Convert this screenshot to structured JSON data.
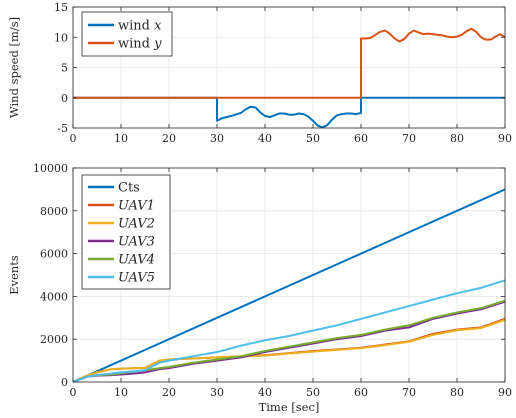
{
  "chart_data": [
    {
      "type": "line",
      "xlabel": "",
      "ylabel": "Wind speed [m/s]",
      "xlim": [
        0,
        90
      ],
      "ylim": [
        -5,
        15
      ],
      "xticks": [
        "0",
        "10",
        "20",
        "30",
        "40",
        "50",
        "60",
        "70",
        "80",
        "90"
      ],
      "yticks": [
        "-5",
        "0",
        "5",
        "10",
        "15"
      ],
      "grid": true,
      "legend_position": "top-left",
      "series": [
        {
          "name": "wind x",
          "name_plain": "wind ",
          "name_italic": "x",
          "color": "#0072BD",
          "points": [
            [
              0,
              0
            ],
            [
              30,
              0
            ],
            [
              30,
              -3.8
            ],
            [
              31,
              -3.4
            ],
            [
              33,
              -3.0
            ],
            [
              35,
              -2.5
            ],
            [
              36,
              -1.9
            ],
            [
              37,
              -1.5
            ],
            [
              38,
              -1.6
            ],
            [
              39,
              -2.4
            ],
            [
              40,
              -3.0
            ],
            [
              41,
              -3.2
            ],
            [
              42,
              -2.9
            ],
            [
              43,
              -2.6
            ],
            [
              44,
              -2.6
            ],
            [
              45,
              -2.8
            ],
            [
              46,
              -2.8
            ],
            [
              47,
              -2.6
            ],
            [
              48,
              -2.7
            ],
            [
              49,
              -3.1
            ],
            [
              50,
              -3.8
            ],
            [
              51,
              -4.6
            ],
            [
              52,
              -4.9
            ],
            [
              53,
              -4.5
            ],
            [
              54,
              -3.6
            ],
            [
              55,
              -2.9
            ],
            [
              56,
              -2.7
            ],
            [
              57,
              -2.6
            ],
            [
              58,
              -2.6
            ],
            [
              59,
              -2.7
            ],
            [
              60,
              -2.5
            ],
            [
              60,
              0
            ],
            [
              90,
              0
            ]
          ]
        },
        {
          "name": "wind y",
          "name_plain": "wind ",
          "name_italic": "y",
          "color": "#D95319",
          "points": [
            [
              0,
              0
            ],
            [
              60,
              0
            ],
            [
              60,
              9.8
            ],
            [
              61,
              9.8
            ],
            [
              62,
              9.9
            ],
            [
              63,
              10.4
            ],
            [
              64,
              10.9
            ],
            [
              65,
              11.1
            ],
            [
              66,
              10.6
            ],
            [
              67,
              9.8
            ],
            [
              68,
              9.3
            ],
            [
              69,
              9.7
            ],
            [
              70,
              10.6
            ],
            [
              71,
              11.1
            ],
            [
              72,
              10.8
            ],
            [
              73,
              10.5
            ],
            [
              74,
              10.6
            ],
            [
              75,
              10.5
            ],
            [
              76,
              10.4
            ],
            [
              77,
              10.3
            ],
            [
              78,
              10.1
            ],
            [
              79,
              10.0
            ],
            [
              80,
              10.1
            ],
            [
              81,
              10.4
            ],
            [
              82,
              11.0
            ],
            [
              83,
              11.4
            ],
            [
              84,
              10.9
            ],
            [
              85,
              10.0
            ],
            [
              86,
              9.6
            ],
            [
              87,
              9.6
            ],
            [
              88,
              10.1
            ],
            [
              89,
              10.5
            ],
            [
              90,
              10.0
            ]
          ]
        }
      ]
    },
    {
      "type": "line",
      "xlabel": "Time [sec]",
      "ylabel": "Events",
      "xlim": [
        0,
        90
      ],
      "ylim": [
        0,
        10000
      ],
      "xticks": [
        "0",
        "10",
        "20",
        "30",
        "40",
        "50",
        "60",
        "70",
        "80",
        "90"
      ],
      "yticks": [
        "0",
        "2000",
        "4000",
        "6000",
        "8000",
        "10000"
      ],
      "grid": true,
      "legend_position": "top-left",
      "series": [
        {
          "name": "Cts",
          "italic": false,
          "color": "#0072BD",
          "points": [
            [
              0,
              0
            ],
            [
              90,
              9000
            ]
          ]
        },
        {
          "name": "UAV1",
          "italic": true,
          "color": "#D95319",
          "points": [
            [
              0,
              0
            ],
            [
              3,
              300
            ],
            [
              5,
              450
            ],
            [
              8,
              600
            ],
            [
              10,
              620
            ],
            [
              13,
              650
            ],
            [
              15,
              660
            ],
            [
              18,
              1000
            ],
            [
              20,
              1050
            ],
            [
              25,
              1100
            ],
            [
              30,
              1150
            ],
            [
              35,
              1200
            ],
            [
              40,
              1250
            ],
            [
              45,
              1350
            ],
            [
              50,
              1450
            ],
            [
              55,
              1520
            ],
            [
              60,
              1600
            ],
            [
              65,
              1750
            ],
            [
              70,
              1900
            ],
            [
              75,
              2250
            ],
            [
              80,
              2450
            ],
            [
              85,
              2550
            ],
            [
              90,
              2950
            ]
          ]
        },
        {
          "name": "UAV2",
          "italic": true,
          "color": "#EDB120",
          "points": [
            [
              0,
              0
            ],
            [
              3,
              300
            ],
            [
              5,
              450
            ],
            [
              8,
              600
            ],
            [
              10,
              620
            ],
            [
              13,
              650
            ],
            [
              15,
              660
            ],
            [
              18,
              1000
            ],
            [
              20,
              1050
            ],
            [
              25,
              1100
            ],
            [
              30,
              1150
            ],
            [
              35,
              1200
            ],
            [
              40,
              1230
            ],
            [
              45,
              1330
            ],
            [
              50,
              1420
            ],
            [
              55,
              1500
            ],
            [
              60,
              1580
            ],
            [
              65,
              1720
            ],
            [
              70,
              1880
            ],
            [
              75,
              2200
            ],
            [
              80,
              2420
            ],
            [
              85,
              2520
            ],
            [
              90,
              2900
            ]
          ]
        },
        {
          "name": "UAV3",
          "italic": true,
          "color": "#7E2F8E",
          "points": [
            [
              0,
              0
            ],
            [
              3,
              250
            ],
            [
              5,
              300
            ],
            [
              8,
              320
            ],
            [
              10,
              350
            ],
            [
              13,
              400
            ],
            [
              15,
              450
            ],
            [
              18,
              600
            ],
            [
              20,
              650
            ],
            [
              25,
              850
            ],
            [
              30,
              1000
            ],
            [
              35,
              1150
            ],
            [
              40,
              1400
            ],
            [
              45,
              1600
            ],
            [
              50,
              1800
            ],
            [
              55,
              2000
            ],
            [
              60,
              2150
            ],
            [
              65,
              2400
            ],
            [
              70,
              2550
            ],
            [
              75,
              2950
            ],
            [
              80,
              3200
            ],
            [
              85,
              3400
            ],
            [
              90,
              3750
            ]
          ]
        },
        {
          "name": "UAV4",
          "italic": true,
          "color": "#77AC30",
          "points": [
            [
              0,
              0
            ],
            [
              3,
              250
            ],
            [
              5,
              320
            ],
            [
              8,
              350
            ],
            [
              10,
              400
            ],
            [
              13,
              500
            ],
            [
              15,
              550
            ],
            [
              18,
              650
            ],
            [
              20,
              700
            ],
            [
              25,
              900
            ],
            [
              30,
              1050
            ],
            [
              35,
              1200
            ],
            [
              40,
              1450
            ],
            [
              45,
              1650
            ],
            [
              50,
              1850
            ],
            [
              55,
              2050
            ],
            [
              60,
              2200
            ],
            [
              65,
              2450
            ],
            [
              70,
              2650
            ],
            [
              75,
              3000
            ],
            [
              80,
              3250
            ],
            [
              85,
              3450
            ],
            [
              90,
              3800
            ]
          ]
        },
        {
          "name": "UAV5",
          "italic": true,
          "color": "#4DBEEE",
          "points": [
            [
              0,
              0
            ],
            [
              3,
              250
            ],
            [
              5,
              320
            ],
            [
              8,
              400
            ],
            [
              10,
              450
            ],
            [
              13,
              500
            ],
            [
              15,
              550
            ],
            [
              18,
              900
            ],
            [
              20,
              1000
            ],
            [
              25,
              1200
            ],
            [
              30,
              1400
            ],
            [
              35,
              1700
            ],
            [
              40,
              1950
            ],
            [
              45,
              2150
            ],
            [
              50,
              2400
            ],
            [
              55,
              2650
            ],
            [
              60,
              2950
            ],
            [
              65,
              3250
            ],
            [
              70,
              3550
            ],
            [
              75,
              3850
            ],
            [
              80,
              4150
            ],
            [
              85,
              4400
            ],
            [
              90,
              4750
            ]
          ]
        }
      ]
    }
  ]
}
